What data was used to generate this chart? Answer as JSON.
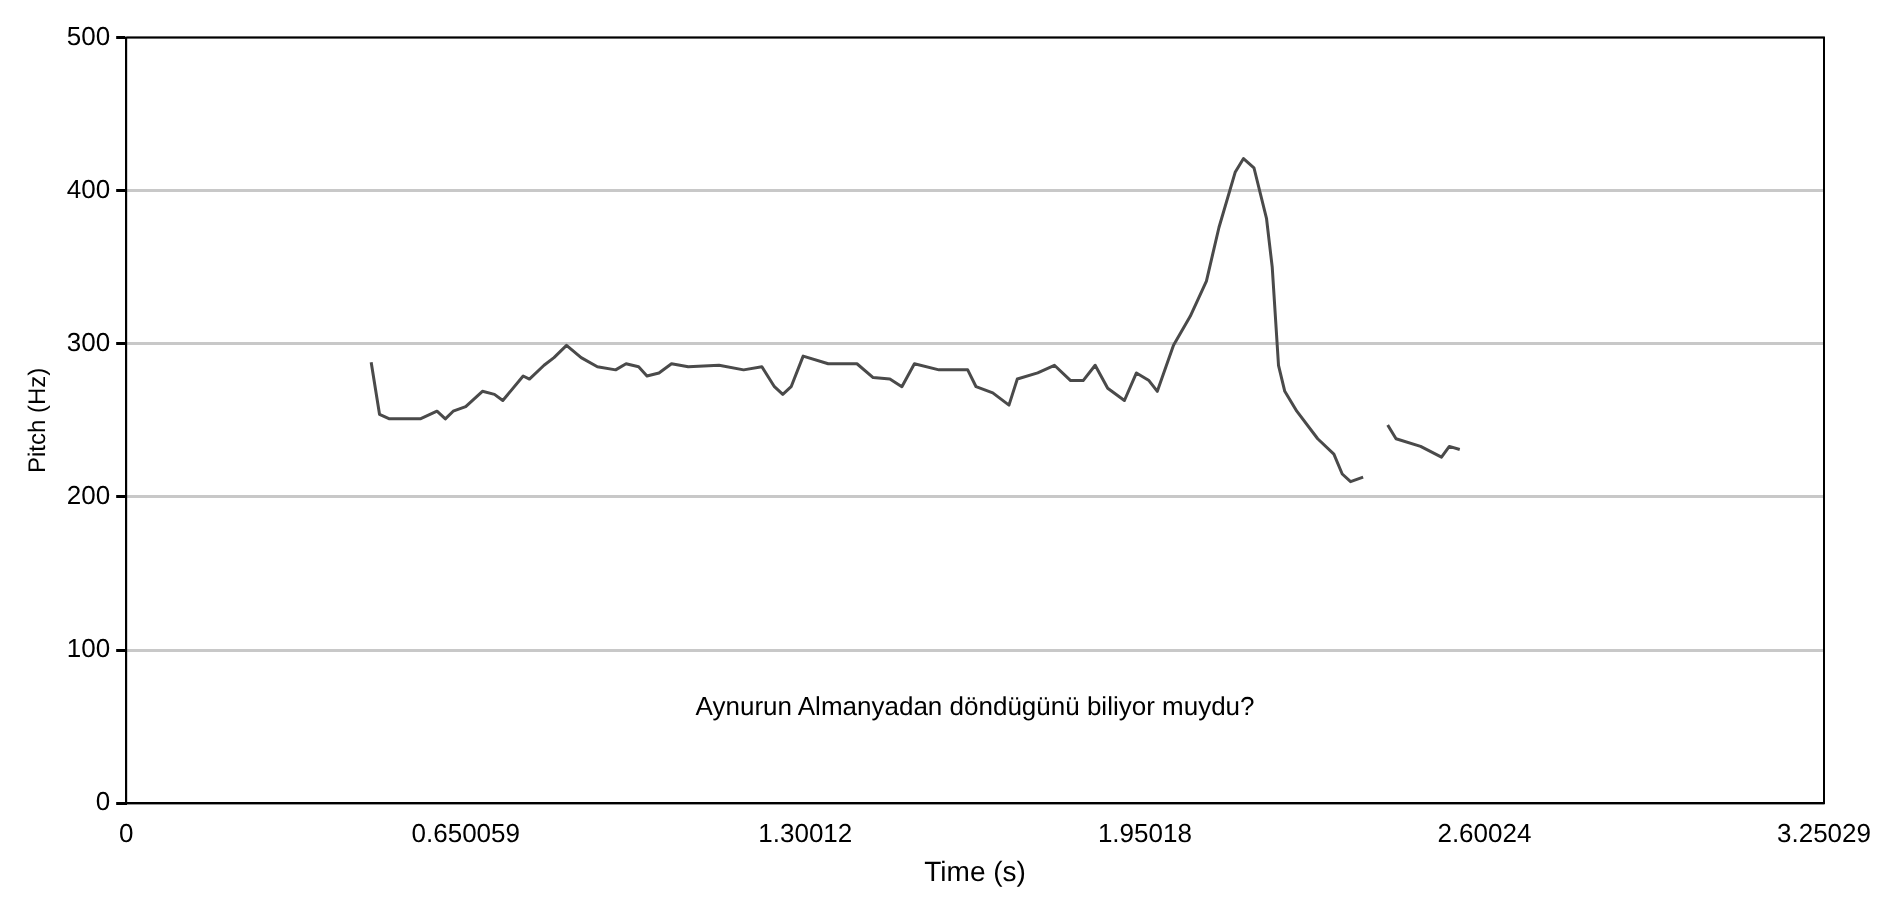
{
  "chart_data": {
    "type": "line",
    "xlabel": "Time (s)",
    "ylabel": "Pitch (Hz)",
    "annotations": [
      "Aynurun Almanyadan döndügünü biliyor muydu?"
    ],
    "xlim": [
      0,
      3.25029
    ],
    "xticks": [
      0,
      0.650059,
      1.30012,
      1.95018,
      2.60024,
      3.25029
    ],
    "ylim": [
      0,
      500
    ],
    "yticks": [
      0,
      100,
      200,
      300,
      400,
      500
    ],
    "grid": "y",
    "marker": "none",
    "line_style": "solid",
    "series": [
      {
        "color": "#4a4a4a",
        "x": [
          0.469,
          0.485,
          0.504,
          0.563,
          0.595,
          0.611,
          0.626,
          0.65,
          0.682,
          0.705,
          0.721,
          0.76,
          0.772,
          0.8,
          0.819,
          0.843,
          0.871,
          0.902,
          0.937,
          0.957,
          0.981,
          0.997,
          1.02,
          1.044,
          1.076,
          1.135,
          1.182,
          1.217,
          1.241,
          1.257,
          1.273,
          1.296,
          1.344,
          1.399,
          1.43,
          1.462,
          1.485,
          1.509,
          1.556,
          1.611,
          1.627,
          1.659,
          1.69,
          1.706,
          1.745,
          1.777,
          1.808,
          1.832,
          1.855,
          1.879,
          1.911,
          1.934,
          1.958,
          1.974,
          2.005,
          2.037,
          2.068,
          2.092,
          2.123,
          2.139,
          2.159,
          2.183,
          2.194,
          2.206,
          2.218,
          2.241,
          2.281,
          2.312,
          2.328,
          2.344,
          2.368,
          2.39,
          2.415,
          2.431,
          2.478,
          2.518,
          2.533,
          2.553
        ],
        "values": [
          288,
          254,
          251,
          251,
          256,
          251,
          256,
          259,
          269,
          267,
          263,
          279,
          277,
          286,
          291,
          299,
          291,
          285,
          283,
          287,
          285,
          279,
          281,
          287,
          285,
          286,
          283,
          285,
          272,
          267,
          272,
          292,
          287,
          287,
          278,
          277,
          272,
          287,
          283,
          283,
          272,
          268,
          260,
          277,
          281,
          286,
          276,
          276,
          286,
          271,
          263,
          281,
          276,
          269,
          299,
          318,
          341,
          376,
          412,
          421,
          415,
          382,
          350,
          286,
          269,
          256,
          238,
          228,
          215,
          210,
          213,
          null,
          247,
          238,
          233,
          226,
          233,
          231
        ]
      }
    ]
  }
}
